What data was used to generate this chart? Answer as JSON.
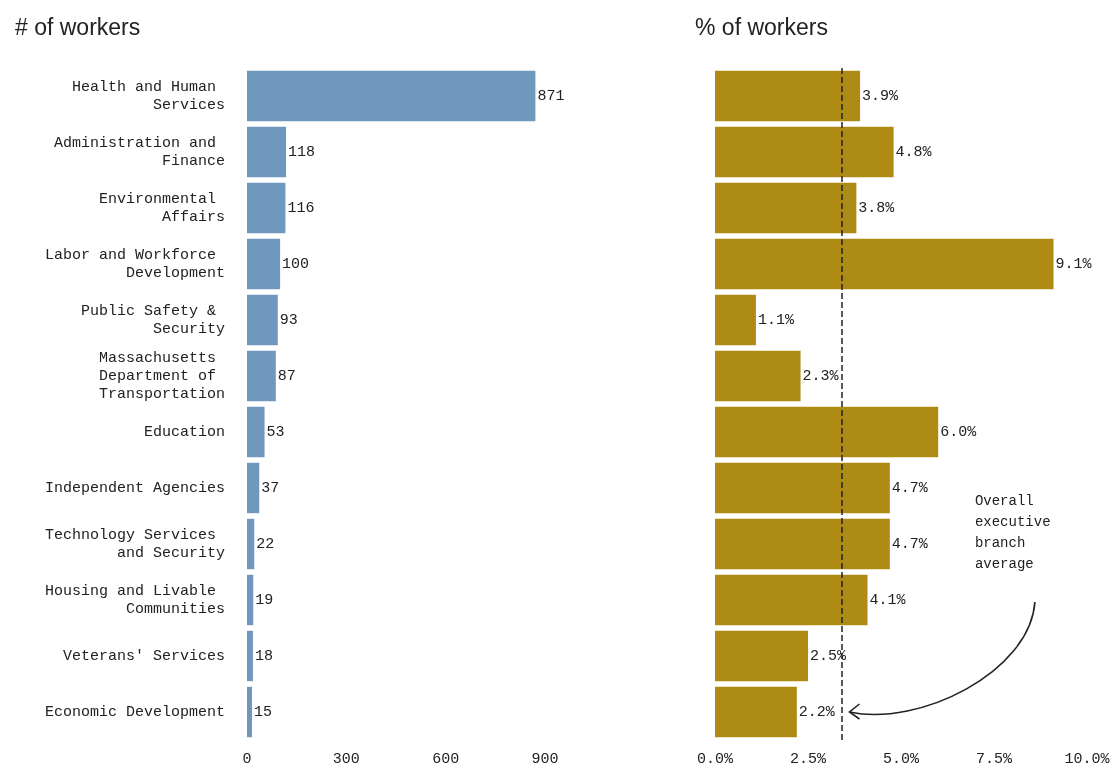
{
  "chart_data": [
    {
      "type": "bar",
      "orientation": "horizontal",
      "title": "# of workers",
      "categories": [
        "Health and Human Services",
        "Administration and Finance",
        "Environmental Affairs",
        "Labor and Workforce Development",
        "Public Safety & Security",
        "Massachusetts Department of Transportation",
        "Education",
        "Independent Agencies",
        "Technology Services and Security",
        "Housing and Livable Communities",
        "Veterans' Services",
        "Economic Development"
      ],
      "values": [
        871,
        118,
        116,
        100,
        93,
        87,
        53,
        37,
        22,
        19,
        18,
        15
      ],
      "color": "#7097bd",
      "xlim": [
        0,
        900
      ],
      "xticks": [
        0,
        300,
        600,
        900
      ],
      "data_labels": true,
      "grid": false
    },
    {
      "type": "bar",
      "orientation": "horizontal",
      "title": "% of workers",
      "categories": [
        "Health and Human Services",
        "Administration and Finance",
        "Environmental Affairs",
        "Labor and Workforce Development",
        "Public Safety & Security",
        "Massachusetts Department of Transportation",
        "Education",
        "Independent Agencies",
        "Technology Services and Security",
        "Housing and Livable Communities",
        "Veterans' Services",
        "Economic Development"
      ],
      "values": [
        3.9,
        4.8,
        3.8,
        9.1,
        1.1,
        2.3,
        6.0,
        4.7,
        4.7,
        4.1,
        2.5,
        2.2
      ],
      "color": "#ae8b14",
      "value_labels": [
        "3.9%",
        "4.8%",
        "3.8%",
        "9.1%",
        "1.1%",
        "2.3%",
        "6.0%",
        "4.7%",
        "4.7%",
        "4.1%",
        "2.5%",
        "2.2%"
      ],
      "xlim": [
        0,
        10
      ],
      "xticks": [
        {
          "value": 0,
          "label": "0.0%"
        },
        {
          "value": 2.5,
          "label": "2.5%"
        },
        {
          "value": 5,
          "label": "5.0%"
        },
        {
          "value": 7.5,
          "label": "7.5%"
        },
        {
          "value": 10,
          "label": "10.0%"
        }
      ],
      "tick_labels": "x",
      "grid": false,
      "ref_lines": [
        {
          "axis": "x",
          "value": 3.4,
          "label": "Overall executive branch average",
          "color": "#222222",
          "line_style": "dashed"
        }
      ]
    }
  ]
}
